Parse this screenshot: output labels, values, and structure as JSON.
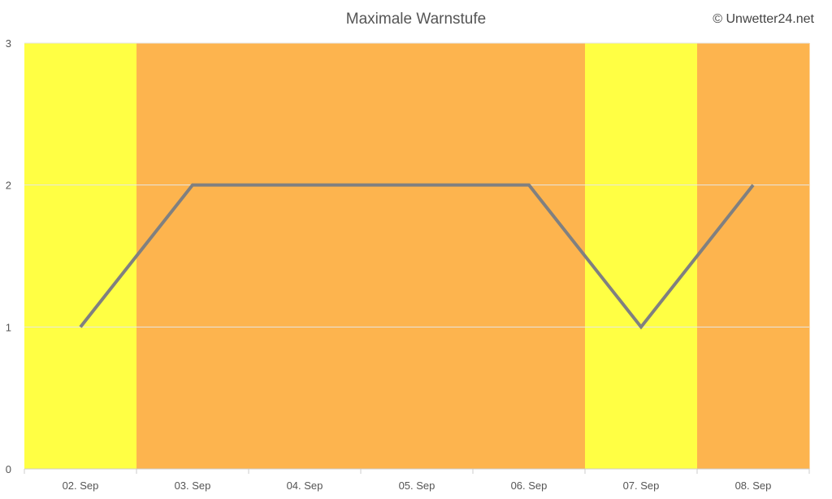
{
  "chart_data": {
    "type": "line",
    "title": "Maximale Warnstufe",
    "copyright": "© Unwetter24.net",
    "categories": [
      "02. Sep",
      "03. Sep",
      "04. Sep",
      "05. Sep",
      "06. Sep",
      "07. Sep",
      "08. Sep"
    ],
    "values": [
      1,
      2,
      2,
      2,
      2,
      1,
      2
    ],
    "ylim": [
      0,
      3
    ],
    "yticks": [
      0,
      1,
      2,
      3
    ],
    "xlabel": "",
    "ylabel": "",
    "grid": true,
    "line_color": "#808080",
    "background_band_colors": {
      "1": "#ffff44",
      "2": "#fdb44e"
    }
  }
}
